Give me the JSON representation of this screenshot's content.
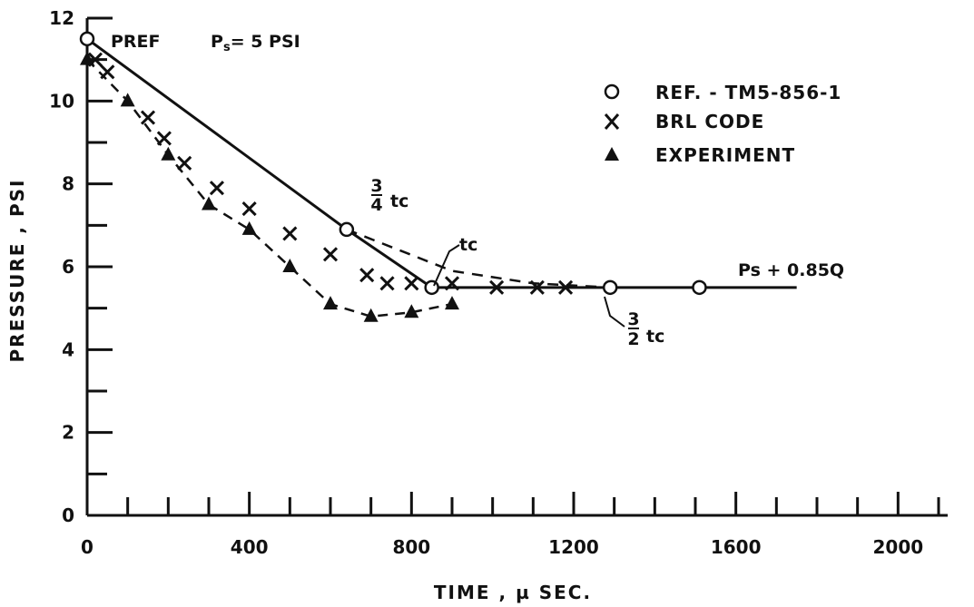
{
  "chart_data": {
    "type": "line",
    "xlabel": "TIME , µ SEC.",
    "ylabel": "PRESSURE , PSI",
    "xlim": [
      0,
      2100
    ],
    "ylim": [
      0,
      12
    ],
    "x_ticks": [
      0,
      400,
      800,
      1200,
      1600,
      2000
    ],
    "x_tick_labels": [
      "0",
      "400",
      "800",
      "1200",
      "1600",
      "2000"
    ],
    "y_ticks": [
      0,
      2,
      4,
      6,
      8,
      10,
      12
    ],
    "y_tick_labels": [
      "0",
      "2",
      "4",
      "6",
      "8",
      "10",
      "12"
    ],
    "grid": false,
    "legend_position": "top-right",
    "series": [
      {
        "name": "REF. - TM5-856-1",
        "marker": "circle",
        "x": [
          0,
          640,
          850,
          1290,
          1510
        ],
        "y": [
          11.5,
          6.9,
          5.5,
          5.5,
          5.5
        ]
      },
      {
        "name": "BRL CODE",
        "marker": "x",
        "x": [
          20,
          50,
          150,
          190,
          240,
          320,
          400,
          500,
          600,
          690,
          740,
          800,
          900,
          1010,
          1110,
          1180
        ],
        "y": [
          11.0,
          10.7,
          9.6,
          9.1,
          8.5,
          7.9,
          7.4,
          6.8,
          6.3,
          5.8,
          5.6,
          5.6,
          5.6,
          5.5,
          5.5,
          5.5
        ]
      },
      {
        "name": "EXPERIMENT",
        "marker": "triangle",
        "x": [
          0,
          100,
          200,
          300,
          400,
          500,
          600,
          700,
          800,
          900
        ],
        "y": [
          11.0,
          10.0,
          8.7,
          7.5,
          6.9,
          6.0,
          5.1,
          4.8,
          4.9,
          5.1
        ]
      }
    ],
    "dashed_tc_curve": {
      "x": [
        640,
        900,
        1100,
        1290
      ],
      "y": [
        6.9,
        5.9,
        5.6,
        5.5
      ]
    },
    "reference_line": {
      "x": [
        850,
        1750
      ],
      "y": [
        5.5,
        5.5
      ],
      "label": "Ps + 0.85Q"
    },
    "annotations": {
      "pref": "PREF",
      "ps_eq": "Ps = 5 PSI",
      "three_quarter_tc": "3/4 tc",
      "tc": "tc",
      "three_half_tc": "3/2 tc"
    }
  },
  "legend": {
    "ref_label": "REF. - TM5-856-1",
    "brl_label": "BRL CODE",
    "exp_label": "EXPERIMENT"
  }
}
